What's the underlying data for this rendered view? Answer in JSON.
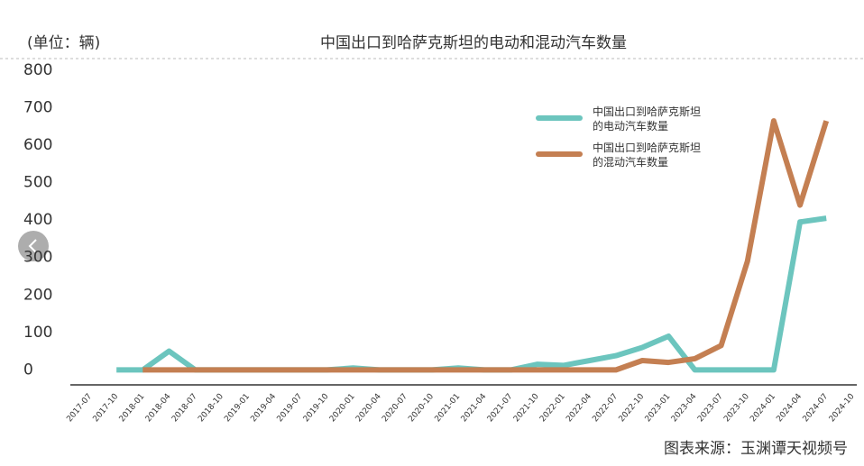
{
  "chart_data": {
    "type": "line",
    "title": "中国出口到哈萨克斯坦的电动和混动汽车数量",
    "unit_label": "(单位：辆)",
    "source": "图表来源：玉渊谭天视频号",
    "categories": [
      "2017-07",
      "2017-10",
      "2018-01",
      "2018-04",
      "2018-07",
      "2018-10",
      "2019-01",
      "2019-04",
      "2019-07",
      "2019-10",
      "2020-01",
      "2020-04",
      "2020-07",
      "2020-10",
      "2021-01",
      "2021-04",
      "2021-07",
      "2021-10",
      "2022-01",
      "2022-04",
      "2022-07",
      "2022-10",
      "2023-01",
      "2023-04",
      "2023-07",
      "2023-10",
      "2024-01",
      "2024-04",
      "2024-07",
      "2024-10"
    ],
    "series": [
      {
        "name": "中国出口到哈萨克斯坦的电动汽车数量",
        "color": "#6cc5be",
        "values": [
          null,
          0,
          0,
          50,
          0,
          0,
          0,
          0,
          0,
          0,
          5,
          0,
          0,
          0,
          5,
          0,
          0,
          15,
          12,
          25,
          38,
          60,
          90,
          0,
          0,
          0,
          0,
          395,
          405,
          null
        ]
      },
      {
        "name": "中国出口到哈萨克斯坦的混动汽车数量",
        "color": "#c47f52",
        "values": [
          null,
          null,
          0,
          0,
          0,
          0,
          0,
          0,
          0,
          0,
          0,
          0,
          0,
          0,
          0,
          0,
          0,
          0,
          0,
          0,
          0,
          25,
          20,
          30,
          65,
          290,
          665,
          440,
          665,
          null
        ]
      }
    ],
    "ylim": [
      -40,
      800
    ],
    "yticks": [
      0,
      100,
      200,
      300,
      400,
      500,
      600,
      700,
      800
    ],
    "legend": "top-right"
  }
}
